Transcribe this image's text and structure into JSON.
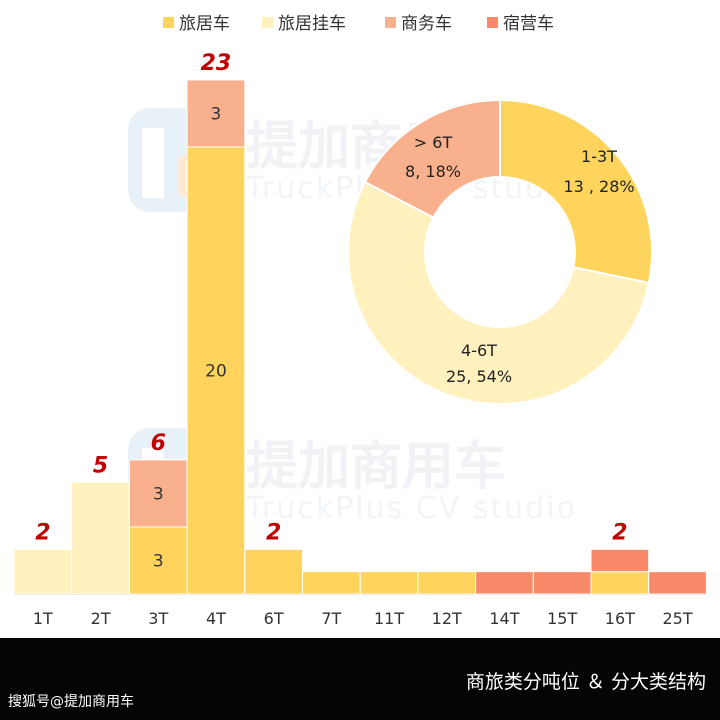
{
  "footer": {
    "caption": "商旅类分吨位 ＆ 分大类结构",
    "source": "搜狐号@提加商用车"
  },
  "watermark": {
    "brand": "提加商用车",
    "sub": "TruckPlus CV studio"
  },
  "colors": {
    "旅居车": "#FFD45C",
    "旅居挂车": "#FFF1BE",
    "商务车": "#F9B08C",
    "宿营车": "#F8896A",
    "total_label": "#C00000",
    "axis_text": "#333333"
  },
  "chart_data": [
    {
      "type": "bar",
      "stacked": true,
      "legend_position": "top",
      "categories": [
        "1T",
        "2T",
        "3T",
        "4T",
        "6T",
        "7T",
        "11T",
        "12T",
        "14T",
        "15T",
        "16T",
        "25T"
      ],
      "series": [
        {
          "name": "旅居车",
          "values": [
            0,
            0,
            3,
            20,
            2,
            1,
            1,
            1,
            0,
            0,
            1,
            0
          ],
          "labels": [
            null,
            null,
            "3",
            "20",
            null,
            null,
            null,
            null,
            null,
            null,
            null,
            null
          ]
        },
        {
          "name": "旅居挂车",
          "values": [
            2,
            5,
            0,
            0,
            0,
            0,
            0,
            0,
            0,
            0,
            0,
            0
          ],
          "labels": [
            null,
            null,
            null,
            null,
            null,
            null,
            null,
            null,
            null,
            null,
            null,
            null
          ]
        },
        {
          "name": "商务车",
          "values": [
            0,
            0,
            3,
            3,
            0,
            0,
            0,
            0,
            0,
            0,
            0,
            0
          ],
          "labels": [
            null,
            null,
            "3",
            "3",
            null,
            null,
            null,
            null,
            null,
            null,
            null,
            null
          ]
        },
        {
          "name": "宿营车",
          "values": [
            0,
            0,
            0,
            0,
            0,
            0,
            0,
            0,
            1,
            1,
            1,
            1
          ],
          "labels": [
            null,
            null,
            null,
            null,
            null,
            null,
            null,
            null,
            null,
            null,
            null,
            null
          ]
        }
      ],
      "total_labels": [
        "2",
        "5",
        "6",
        "23",
        "2",
        null,
        null,
        null,
        null,
        null,
        "2",
        null
      ],
      "ylim": [
        0,
        23
      ],
      "grid": false
    },
    {
      "type": "pie",
      "donut": true,
      "slices": [
        {
          "name": "1-3T",
          "value": 13,
          "percent": "28%",
          "value_text": "13 , 28%",
          "color": "#FFD45C"
        },
        {
          "name": "4-6T",
          "value": 25,
          "percent": "54%",
          "value_text": "25, 54%",
          "color": "#FFF1BE"
        },
        {
          "name": "> 6T",
          "value": 8,
          "percent": "18%",
          "value_text": "8, 18%",
          "color": "#F9B08C"
        }
      ]
    }
  ]
}
